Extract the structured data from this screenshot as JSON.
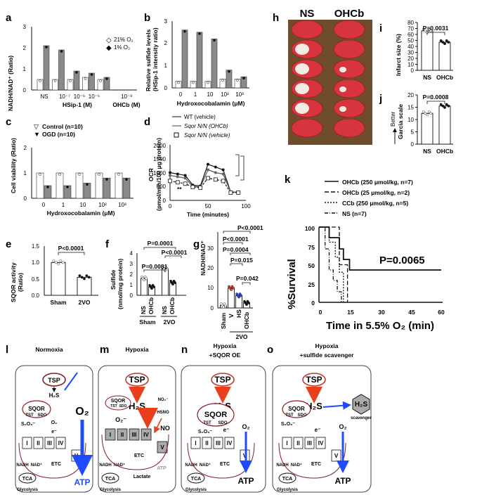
{
  "panels": {
    "a": {
      "letter": "a",
      "ylabel": "NADH/NAD⁺ (Ratio)",
      "legend": [
        "21% O₂",
        "1% O₂"
      ],
      "xticks": [
        "NS",
        "10⁻⁷",
        "10⁻⁶",
        "10⁻⁵",
        "10⁻³"
      ],
      "xgroup1": "HSip-1 (M)",
      "xgroup2": "OHCb (M)",
      "yticks": [
        "0",
        "1",
        "2",
        "3"
      ]
    },
    "b": {
      "letter": "b",
      "ylabel": "Relative sulfide levels",
      "ylabel2": "(HSip-1 intensity ratio)",
      "xlabel": "Hydroxocobalamin (μM)",
      "xticks": [
        "0",
        "1",
        "10",
        "10²",
        "10³"
      ],
      "yticks": [
        "0",
        "1",
        "2",
        "3"
      ]
    },
    "c": {
      "letter": "c",
      "ylabel": "Cell viability (Ratio)",
      "legend": [
        "Control (n=10)",
        "OGD (n=10)"
      ],
      "xlabel": "Hydroxocobalamin (μM)",
      "xticks": [
        "0",
        "1",
        "10",
        "10²",
        "10³"
      ],
      "yticks": [
        "0",
        "1",
        "2"
      ]
    },
    "d": {
      "letter": "d",
      "ylabel": "OCR",
      "ylabel2": "(pmol/min/100 μg protein)",
      "xlabel": "Time (minutes)",
      "legend": [
        "WT (vehicle)",
        "Sqor N/N (OHCb)",
        "Sqor N/N (vehicle)"
      ],
      "xticks": [
        "0",
        "50",
        "100"
      ],
      "yticks": [
        "0",
        "500",
        "1000",
        "1500",
        "2000"
      ],
      "sig": "**"
    },
    "e": {
      "letter": "e",
      "ylabel": "SQOR activity",
      "ylabel2": "(Ratio)",
      "xticks": [
        "Sham",
        "2VO"
      ],
      "yticks": [
        "0.0",
        "0.5",
        "1.0",
        "1.5"
      ],
      "p": "P<0.0001"
    },
    "f": {
      "letter": "f",
      "ylabel": "Sulfide",
      "ylabel2": "(nmol/mg protein)",
      "xticks": [
        "NS",
        "OHCb",
        "NS",
        "OHCb"
      ],
      "groups": [
        "Sham",
        "2VO"
      ],
      "yticks": [
        "0",
        "1",
        "2",
        "3",
        "4"
      ],
      "p": [
        "P=0.0001",
        "P<0.0001",
        "P=0.0081"
      ]
    },
    "g": {
      "letter": "g",
      "ylabel": "NADH/NAD⁺",
      "xticks": [
        "Sham",
        "V",
        "HS",
        "OHCb"
      ],
      "group": "2VO",
      "yticks": [
        "0",
        "10",
        "20",
        "30"
      ],
      "p": [
        "P<0.0001",
        "P<0.0001",
        "P=0.0004",
        "P=0.015",
        "P=0.042"
      ]
    },
    "h": {
      "letter": "h",
      "cols": [
        "NS",
        "OHCb"
      ]
    },
    "i": {
      "letter": "i",
      "ylabel": "Infarct size (%)",
      "xticks": [
        "NS",
        "OHCb"
      ],
      "yticks": [
        "0",
        "10",
        "20",
        "30",
        "40",
        "50",
        "60",
        "70",
        "80"
      ],
      "p": "P=0.0031"
    },
    "j": {
      "letter": "j",
      "ylabel": "Garcia scale",
      "arrow": "Better",
      "xticks": [
        "NS",
        "OHCb"
      ],
      "yticks": [
        "0",
        "5",
        "10",
        "15",
        "20"
      ],
      "p": "P=0.0008"
    },
    "k": {
      "letter": "k",
      "ylabel": "%Survival",
      "xlabel": "Time in 5.5% O₂ (min)",
      "xticks": [
        "0",
        "15",
        "30",
        "45",
        "60"
      ],
      "yticks": [
        "0",
        "25",
        "50",
        "75",
        "100"
      ],
      "legend": [
        "OHCb (250 μmol/kg, n=7)",
        "OHCb (25 μmol/kg, n=2)",
        "CCb (250 μmol/kg, n=5)",
        "NS (n=7)"
      ],
      "p": "P=0.0065"
    },
    "l": {
      "letter": "l",
      "title": "Normoxia"
    },
    "m": {
      "letter": "m",
      "title": "Hypoxia"
    },
    "n": {
      "letter": "n",
      "title": "Hypoxia",
      "title2": "+SQOR OE"
    },
    "o": {
      "letter": "o",
      "title": "Hypoxia",
      "title2": "+sulfide scavenger"
    }
  },
  "schematic": {
    "tsp": "TSP",
    "h2s": "H₂S",
    "h2s_small": "H₂S",
    "sqor": "SQOR",
    "tst": "TST",
    "sdo": "SDO",
    "s2o3": "S₂O₃⁻",
    "o2": "O₂",
    "o2_big": "O₂",
    "o2minus": "O₂⁻",
    "e": "e⁻",
    "atp": "ATP",
    "etc": "ETC",
    "tca": "TCA",
    "glycolysis": "Glycolysis",
    "nadh": "NADH",
    "nad": "NAD⁺",
    "lactate": "Lactate",
    "no2": "NO₂⁻",
    "hsno": "HSNO",
    "no": "NO",
    "scavenger": "scavenger",
    "complexes": [
      "I",
      "II",
      "III",
      "IV",
      "V"
    ]
  },
  "chart_data": [
    {
      "type": "bar",
      "panel": "a",
      "categories": [
        "NS",
        "10^-7",
        "10^-6",
        "10^-5",
        "10^-3"
      ],
      "series": [
        {
          "name": "21% O2",
          "values": [
            0.5,
            0.5,
            0.5,
            0.6,
            0.5
          ]
        },
        {
          "name": "1% O2",
          "values": [
            2.1,
            1.9,
            0.9,
            0.8,
            0.6
          ]
        }
      ],
      "ylim": [
        0,
        3
      ]
    },
    {
      "type": "bar",
      "panel": "b",
      "categories": [
        "0",
        "1",
        "10",
        "10^2",
        "10^3"
      ],
      "series": [
        {
          "values": [
            0.3,
            0.3,
            0.3,
            0.4,
            0.4
          ]
        },
        {
          "values": [
            2.6,
            2.5,
            2.2,
            0.8,
            0.5
          ]
        }
      ],
      "ylim": [
        0,
        3
      ]
    },
    {
      "type": "bar",
      "panel": "c",
      "categories": [
        "0",
        "1",
        "10",
        "10^2",
        "10^3"
      ],
      "series": [
        {
          "name": "Control (n=10)",
          "values": [
            1.0,
            1.0,
            1.0,
            1.0,
            1.0
          ]
        },
        {
          "name": "OGD (n=10)",
          "values": [
            0.5,
            0.5,
            0.6,
            0.8,
            0.8
          ]
        }
      ],
      "ylim": [
        0,
        2
      ]
    },
    {
      "type": "line",
      "panel": "d",
      "series": [
        {
          "name": "WT (vehicle)",
          "x": [
            0,
            10,
            20,
            30,
            40,
            50,
            60,
            70,
            80,
            90
          ],
          "y": [
            1000,
            950,
            900,
            550,
            520,
            1300,
            1200,
            1100,
            300,
            300
          ]
        },
        {
          "name": "Sqor N/N (OHCb)",
          "x": [
            0,
            10,
            20,
            30,
            40,
            50,
            60,
            70,
            80,
            90
          ],
          "y": [
            900,
            850,
            800,
            500,
            480,
            1100,
            1000,
            950,
            300,
            300
          ]
        },
        {
          "name": "Sqor N/N (vehicle)",
          "x": [
            0,
            10,
            20,
            30,
            40,
            50,
            60,
            70,
            80,
            90
          ],
          "y": [
            700,
            650,
            600,
            480,
            460,
            800,
            750,
            700,
            280,
            280
          ]
        }
      ],
      "ylim": [
        0,
        2000
      ],
      "xlim": [
        0,
        100
      ]
    },
    {
      "type": "bar",
      "panel": "e",
      "categories": [
        "Sham",
        "2VO"
      ],
      "values": [
        1.0,
        0.55
      ],
      "ylim": [
        0,
        1.5
      ]
    },
    {
      "type": "bar",
      "panel": "f",
      "categories": [
        "Sham NS",
        "Sham OHCb",
        "2VO NS",
        "2VO OHCb"
      ],
      "values": [
        1.6,
        0.8,
        2.5,
        1.2
      ],
      "ylim": [
        0,
        4
      ]
    },
    {
      "type": "bar",
      "panel": "g",
      "categories": [
        "Sham",
        "V",
        "HS",
        "OHCb"
      ],
      "values": [
        1,
        8,
        5,
        2
      ],
      "ylim": [
        0,
        30
      ]
    },
    {
      "type": "bar",
      "panel": "i",
      "categories": [
        "NS",
        "OHCb"
      ],
      "values": [
        66,
        47
      ],
      "ylim": [
        0,
        80
      ]
    },
    {
      "type": "bar",
      "panel": "j",
      "categories": [
        "NS",
        "OHCb"
      ],
      "values": [
        12.5,
        15.5
      ],
      "ylim": [
        0,
        20
      ]
    },
    {
      "type": "line",
      "panel": "k",
      "xlim": [
        0,
        60
      ],
      "ylim": [
        0,
        100
      ],
      "series": [
        {
          "name": "OHCb (250 μmol/kg, n=7)",
          "x": [
            0,
            5,
            10,
            12,
            15,
            20,
            22,
            25,
            60
          ],
          "y": [
            100,
            86,
            71,
            57,
            43,
            43,
            43,
            43,
            43
          ]
        },
        {
          "name": "OHCb (25 μmol/kg, n=2)",
          "x": [
            0,
            10,
            12,
            14
          ],
          "y": [
            100,
            50,
            50,
            0
          ]
        },
        {
          "name": "CCb (250 μmol/kg, n=5)",
          "x": [
            0,
            5,
            8,
            10,
            12
          ],
          "y": [
            100,
            80,
            60,
            40,
            0
          ]
        },
        {
          "name": "NS (n=7)",
          "x": [
            0,
            3,
            5,
            7,
            9,
            11
          ],
          "y": [
            100,
            71,
            43,
            29,
            14,
            0
          ]
        }
      ]
    }
  ]
}
